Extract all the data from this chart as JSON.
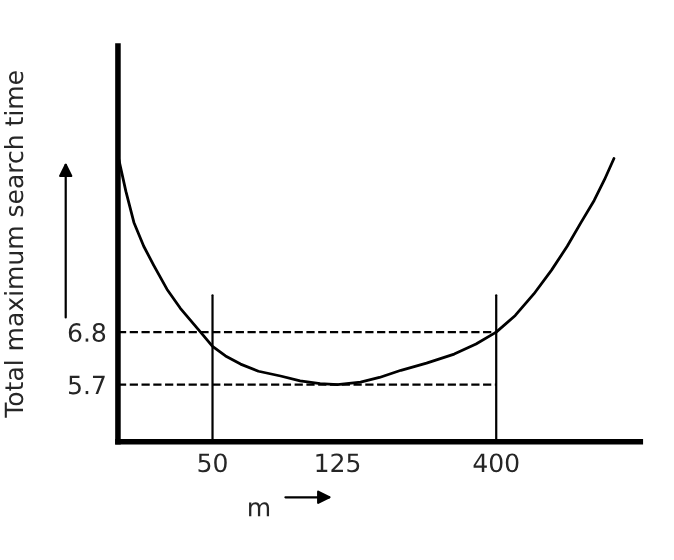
{
  "chart_data": {
    "type": "line",
    "xlabel": "m",
    "ylabel": "Total maximum search time",
    "x": [
      25,
      26.5,
      28.1,
      30.2,
      32.5,
      35.8,
      39.5,
      45.8,
      50,
      55,
      61.4,
      70,
      82.3,
      95,
      110,
      125,
      148,
      170,
      199,
      240,
      294,
      345,
      400,
      460,
      527,
      600,
      673,
      745,
      820,
      885,
      948
    ],
    "series": [
      {
        "color": "#000000",
        "values": [
          10.5,
          9.75,
          9.1,
          8.6,
          8.2,
          7.7,
          7.3,
          6.8,
          6.5,
          6.3,
          6.13,
          5.98,
          5.88,
          5.78,
          5.72,
          5.7,
          5.75,
          5.85,
          6.0,
          6.15,
          6.34,
          6.55,
          6.8,
          7.15,
          7.6,
          8.1,
          8.6,
          9.1,
          9.56,
          10.0,
          10.44
        ]
      }
    ],
    "log": "x",
    "xlim": [
      25,
      1150
    ],
    "ylim": [
      4.5,
      12.8
    ],
    "xticks": [
      50,
      125,
      400
    ],
    "yticks": [
      5.7,
      6.8
    ],
    "ref_lines": [
      {
        "axis": "y",
        "value": 6.8,
        "line_style": "dashed",
        "color": "#000000"
      },
      {
        "axis": "y",
        "value": 5.7,
        "line_style": "dashed",
        "color": "#000000"
      },
      {
        "axis": "x",
        "value": 50,
        "line_style": "solid",
        "color": "#000000"
      },
      {
        "axis": "x",
        "value": 400,
        "line_style": "solid",
        "color": "#000000"
      }
    ],
    "grid": false,
    "marker": "none",
    "line_style": "solid"
  }
}
